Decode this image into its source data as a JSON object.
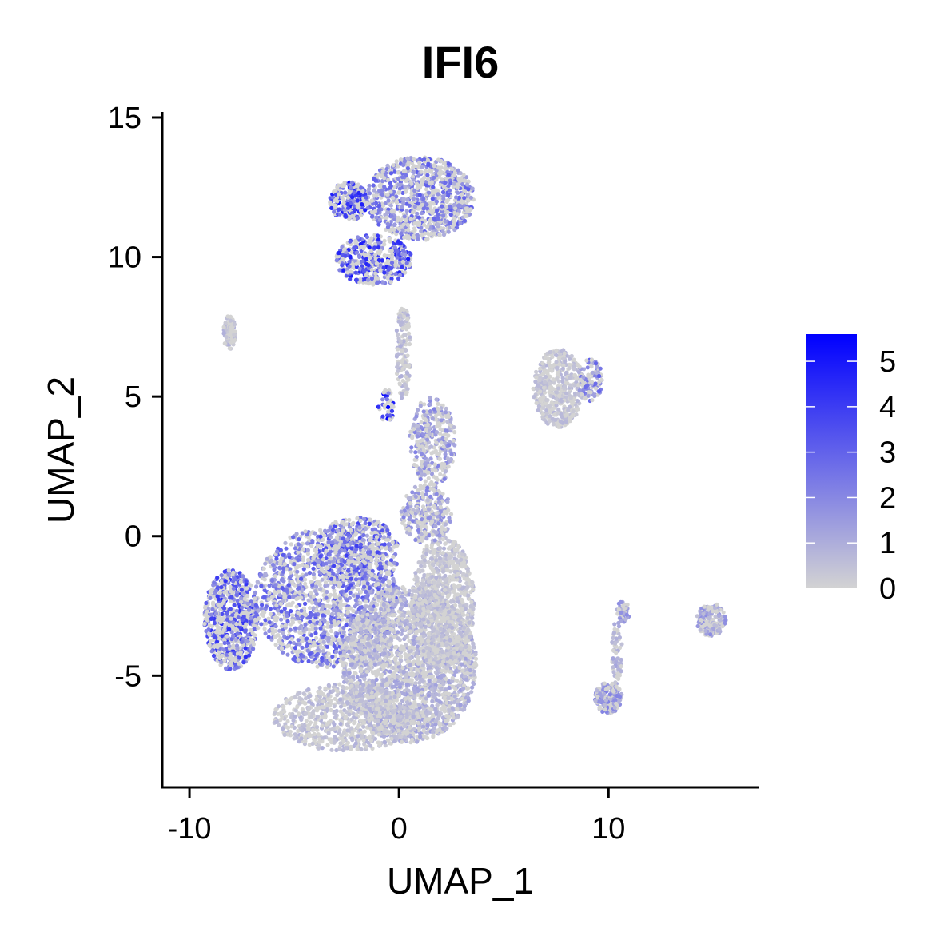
{
  "chart_data": {
    "type": "scatter",
    "title": "IFI6",
    "xlabel": "UMAP_1",
    "ylabel": "UMAP_2",
    "xlim": [
      -11.3,
      17.2
    ],
    "ylim": [
      -9.0,
      15.2
    ],
    "xticks": [
      -10,
      0,
      10
    ],
    "yticks": [
      15,
      10,
      5,
      0,
      -5
    ],
    "colorbar": {
      "low_color": "#d3d3d3",
      "high_color": "#0000ff",
      "range": [
        0,
        5.6
      ],
      "ticks": [
        0,
        1,
        2,
        3,
        4,
        5
      ],
      "placement": "right"
    },
    "clusters": [
      {
        "cx": 1.0,
        "cy": 12.1,
        "rx": 2.6,
        "ry": 1.5,
        "expr": 2.0,
        "n": 950
      },
      {
        "cx": -2.4,
        "cy": 12.0,
        "rx": 0.9,
        "ry": 0.7,
        "expr": 3.4,
        "n": 220
      },
      {
        "cx": -1.2,
        "cy": 9.9,
        "rx": 1.8,
        "ry": 0.9,
        "expr": 3.1,
        "n": 420
      },
      {
        "cx": -8.1,
        "cy": 7.3,
        "rx": 0.3,
        "ry": 0.6,
        "expr": 0.6,
        "n": 90
      },
      {
        "cx": 0.2,
        "cy": 6.6,
        "rx": 0.35,
        "ry": 1.7,
        "expr": 0.6,
        "n": 140
      },
      {
        "cx": 1.6,
        "cy": 3.4,
        "rx": 1.1,
        "ry": 1.6,
        "expr": 1.4,
        "n": 330
      },
      {
        "cx": -0.6,
        "cy": 4.7,
        "rx": 0.4,
        "ry": 0.6,
        "expr": 4.2,
        "n": 45
      },
      {
        "cx": -8.0,
        "cy": -3.0,
        "rx": 1.3,
        "ry": 1.8,
        "expr": 2.8,
        "n": 700
      },
      {
        "cx": -3.5,
        "cy": -2.2,
        "rx": 3.4,
        "ry": 2.5,
        "expr": 2.1,
        "n": 1500
      },
      {
        "cx": -2.0,
        "cy": -0.6,
        "rx": 2.0,
        "ry": 1.3,
        "expr": 2.5,
        "n": 500
      },
      {
        "cx": 0.5,
        "cy": -4.6,
        "rx": 3.2,
        "ry": 2.8,
        "expr": 0.9,
        "n": 2300
      },
      {
        "cx": 2.1,
        "cy": -2.4,
        "rx": 1.5,
        "ry": 2.4,
        "expr": 0.5,
        "n": 900
      },
      {
        "cx": -2.5,
        "cy": -6.5,
        "rx": 3.5,
        "ry": 1.2,
        "expr": 0.6,
        "n": 800
      },
      {
        "cx": 1.3,
        "cy": 0.8,
        "rx": 1.2,
        "ry": 1.1,
        "expr": 1.4,
        "n": 300
      },
      {
        "cx": 7.6,
        "cy": 5.3,
        "rx": 1.2,
        "ry": 1.4,
        "expr": 0.5,
        "n": 480
      },
      {
        "cx": 9.1,
        "cy": 5.6,
        "rx": 0.6,
        "ry": 0.8,
        "expr": 2.0,
        "n": 110
      },
      {
        "cx": 10.0,
        "cy": -5.8,
        "rx": 0.65,
        "ry": 0.55,
        "expr": 1.5,
        "n": 180
      },
      {
        "cx": 10.4,
        "cy": -4.2,
        "rx": 0.25,
        "ry": 1.2,
        "expr": 0.8,
        "n": 70
      },
      {
        "cx": 10.7,
        "cy": -2.7,
        "rx": 0.3,
        "ry": 0.4,
        "expr": 1.2,
        "n": 45
      },
      {
        "cx": 14.9,
        "cy": -3.0,
        "rx": 0.7,
        "ry": 0.6,
        "expr": 1.2,
        "n": 200
      }
    ]
  }
}
